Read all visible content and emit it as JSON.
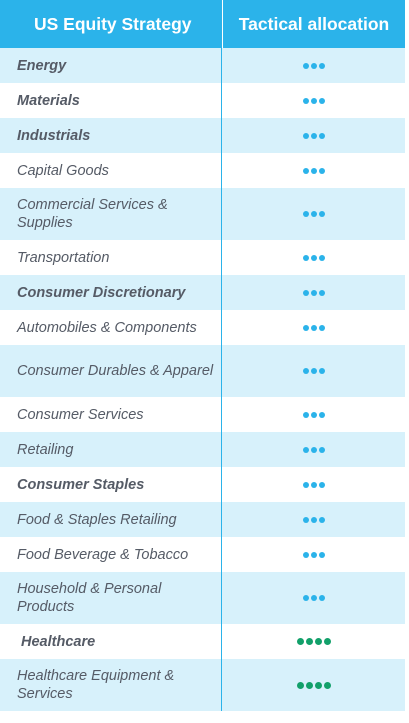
{
  "header": {
    "col1": "US Equity Strategy",
    "col2": "Tactical allocation"
  },
  "colors": {
    "accent": "#2bb3ea",
    "shade": "#d7f1fb",
    "green": "#12a06a"
  },
  "rows": [
    {
      "label": "Energy",
      "bold": true,
      "dots": 3,
      "dot_color": "blue"
    },
    {
      "label": "Materials",
      "bold": true,
      "dots": 3,
      "dot_color": "blue"
    },
    {
      "label": "Industrials",
      "bold": true,
      "dots": 3,
      "dot_color": "blue"
    },
    {
      "label": "Capital Goods",
      "bold": false,
      "dots": 3,
      "dot_color": "blue"
    },
    {
      "label": "Commercial Services & Supplies",
      "bold": false,
      "dots": 3,
      "dot_color": "blue"
    },
    {
      "label": "Transportation",
      "bold": false,
      "dots": 3,
      "dot_color": "blue"
    },
    {
      "label": "Consumer Discretionary",
      "bold": true,
      "dots": 3,
      "dot_color": "blue"
    },
    {
      "label": "Automobiles & Components",
      "bold": false,
      "dots": 3,
      "dot_color": "blue"
    },
    {
      "label": "Consumer Durables & Apparel",
      "bold": false,
      "dots": 3,
      "dot_color": "blue"
    },
    {
      "label": "Consumer Services",
      "bold": false,
      "dots": 3,
      "dot_color": "blue"
    },
    {
      "label": "Retailing",
      "bold": false,
      "dots": 3,
      "dot_color": "blue"
    },
    {
      "label": "Consumer Staples",
      "bold": true,
      "dots": 3,
      "dot_color": "blue"
    },
    {
      "label": "Food & Staples Retailing",
      "bold": false,
      "dots": 3,
      "dot_color": "blue"
    },
    {
      "label": "Food Beverage & Tobacco",
      "bold": false,
      "dots": 3,
      "dot_color": "blue"
    },
    {
      "label": "Household & Personal Products",
      "bold": false,
      "dots": 3,
      "dot_color": "blue"
    },
    {
      "label": "Healthcare",
      "bold": true,
      "dots": 4,
      "dot_color": "green"
    },
    {
      "label": "Healthcare Equipment & Services",
      "bold": false,
      "dots": 4,
      "dot_color": "green"
    }
  ]
}
